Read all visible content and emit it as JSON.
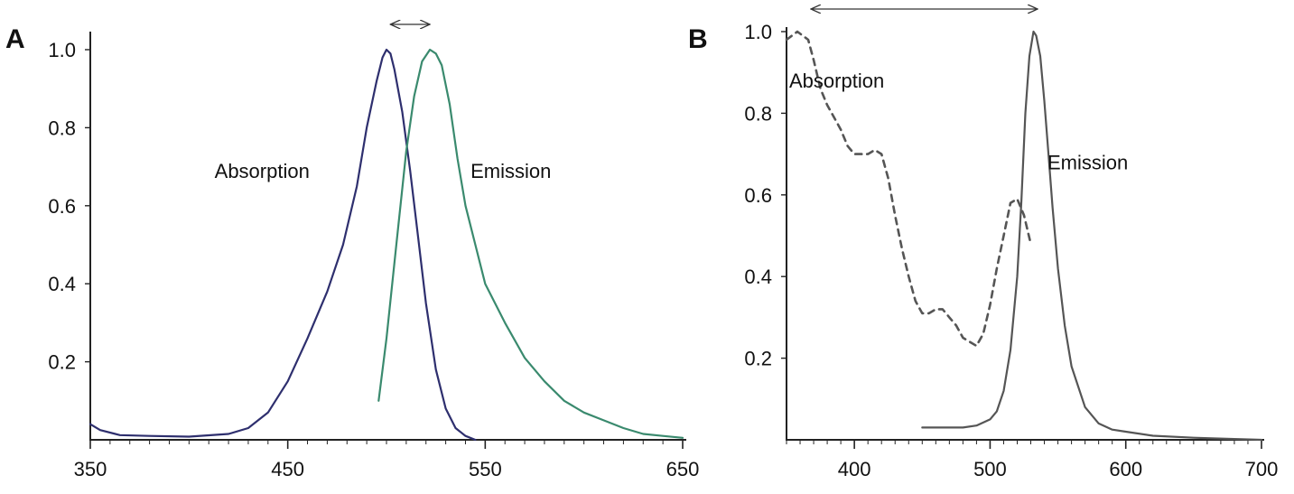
{
  "chart_data": [
    {
      "panel": "A",
      "type": "line",
      "xlim": [
        350,
        650
      ],
      "ylim": [
        0,
        1.05
      ],
      "xticks": [
        350,
        450,
        550,
        650
      ],
      "yticks": [
        0.2,
        0.4,
        0.6,
        0.8,
        1.0
      ],
      "xtick_labels": [
        "350",
        "450",
        "550",
        "650"
      ],
      "ytick_labels": [
        "0.2",
        "0.4",
        "0.6",
        "0.8",
        "1.0"
      ],
      "grid": false,
      "annotations": [
        {
          "text": "Absorption",
          "x": 437,
          "y": 0.69
        },
        {
          "text": "Emission",
          "x": 563,
          "y": 0.69
        }
      ],
      "arrow": {
        "x_start": 502,
        "x_end": 522,
        "y": 1.06
      },
      "series": [
        {
          "name": "Absorption",
          "color": "#2e2f6e",
          "style": "solid",
          "x": [
            350,
            355,
            365,
            380,
            400,
            420,
            430,
            440,
            450,
            460,
            470,
            478,
            485,
            490,
            495,
            498,
            500,
            502,
            504,
            508,
            512,
            516,
            520,
            525,
            530,
            535,
            540,
            545
          ],
          "y": [
            0.04,
            0.025,
            0.012,
            0.01,
            0.008,
            0.015,
            0.03,
            0.07,
            0.15,
            0.26,
            0.38,
            0.5,
            0.65,
            0.8,
            0.92,
            0.98,
            1.0,
            0.99,
            0.95,
            0.84,
            0.69,
            0.52,
            0.35,
            0.18,
            0.08,
            0.03,
            0.01,
            0.0
          ]
        },
        {
          "name": "Emission",
          "color": "#3a8a6e",
          "style": "solid",
          "x": [
            496,
            500,
            505,
            510,
            514,
            518,
            522,
            525,
            528,
            532,
            536,
            540,
            545,
            550,
            560,
            570,
            580,
            590,
            600,
            610,
            620,
            630,
            640,
            650
          ],
          "y": [
            0.1,
            0.26,
            0.5,
            0.74,
            0.88,
            0.97,
            1.0,
            0.99,
            0.96,
            0.86,
            0.72,
            0.6,
            0.5,
            0.4,
            0.3,
            0.21,
            0.15,
            0.1,
            0.07,
            0.05,
            0.03,
            0.015,
            0.01,
            0.005
          ]
        }
      ]
    },
    {
      "panel": "B",
      "type": "line",
      "xlim": [
        350,
        700
      ],
      "ylim": [
        0,
        1.0
      ],
      "xticks": [
        400,
        500,
        600,
        700
      ],
      "yticks": [
        0.2,
        0.4,
        0.6,
        0.8,
        1.0
      ],
      "xtick_labels": [
        "400",
        "500",
        "600",
        "700"
      ],
      "ytick_labels": [
        "0.2",
        "0.4",
        "0.6",
        "0.8",
        "1.0"
      ],
      "grid": false,
      "annotations": [
        {
          "text": "Absorption",
          "x": 387,
          "y": 0.88
        },
        {
          "text": "Emission",
          "x": 572,
          "y": 0.68
        }
      ],
      "arrow": {
        "x_start": 368,
        "x_end": 535,
        "y": 1.04
      },
      "series": [
        {
          "name": "Absorption",
          "color": "#555555",
          "style": "dashed",
          "x": [
            350,
            358,
            362,
            366,
            370,
            375,
            380,
            385,
            390,
            395,
            400,
            405,
            410,
            415,
            420,
            425,
            430,
            435,
            440,
            445,
            450,
            455,
            460,
            465,
            470,
            475,
            480,
            485,
            490,
            495,
            500,
            505,
            510,
            515,
            520,
            525,
            530
          ],
          "y": [
            0.98,
            1.0,
            0.99,
            0.98,
            0.93,
            0.86,
            0.82,
            0.79,
            0.76,
            0.72,
            0.7,
            0.7,
            0.7,
            0.71,
            0.7,
            0.64,
            0.55,
            0.47,
            0.4,
            0.34,
            0.31,
            0.31,
            0.32,
            0.32,
            0.3,
            0.28,
            0.25,
            0.24,
            0.23,
            0.26,
            0.33,
            0.42,
            0.5,
            0.58,
            0.59,
            0.55,
            0.48
          ]
        },
        {
          "name": "Emission",
          "color": "#555555",
          "style": "solid",
          "x": [
            450,
            460,
            470,
            480,
            490,
            500,
            505,
            510,
            515,
            520,
            523,
            526,
            529,
            532,
            534,
            537,
            540,
            543,
            546,
            550,
            555,
            560,
            570,
            580,
            590,
            600,
            620,
            650,
            680,
            700
          ],
          "y": [
            0.03,
            0.03,
            0.03,
            0.03,
            0.035,
            0.05,
            0.07,
            0.12,
            0.22,
            0.4,
            0.58,
            0.8,
            0.94,
            1.0,
            0.99,
            0.94,
            0.83,
            0.7,
            0.57,
            0.42,
            0.28,
            0.18,
            0.08,
            0.04,
            0.025,
            0.02,
            0.01,
            0.005,
            0.002,
            0.0
          ]
        }
      ]
    }
  ]
}
